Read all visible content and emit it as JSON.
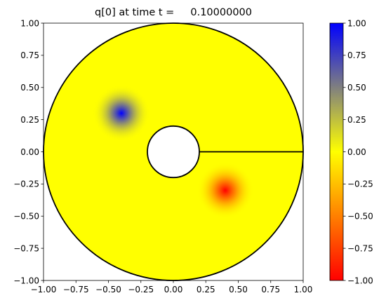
{
  "chart_data": {
    "type": "heatmap",
    "title": "q[0] at time t =     0.10000000",
    "xlabel": "",
    "ylabel": "",
    "xlim": [
      -1.0,
      1.0
    ],
    "ylim": [
      -1.0,
      1.0
    ],
    "x_ticks": [
      -1.0,
      -0.75,
      -0.5,
      -0.25,
      0.0,
      0.25,
      0.5,
      0.75,
      1.0
    ],
    "x_tick_labels": [
      "−1.00",
      "−0.75",
      "−0.50",
      "−0.25",
      "0.00",
      "0.25",
      "0.50",
      "0.75",
      "1.00"
    ],
    "y_ticks": [
      1.0,
      0.75,
      0.5,
      0.25,
      0.0,
      -0.25,
      -0.5,
      -0.75,
      -1.0
    ],
    "y_tick_labels": [
      "1.00",
      "0.75",
      "0.50",
      "0.25",
      "0.00",
      "−0.25",
      "−0.50",
      "−0.75",
      "−1.00"
    ],
    "grid": false,
    "domain": {
      "outer_radius": 1.0,
      "inner_radius": 0.2,
      "cut_line": {
        "x_from": 0.2,
        "x_to": 1.0,
        "y": 0.0
      },
      "fill_value": 0.0
    },
    "blobs": [
      {
        "name": "positive",
        "cx": -0.4,
        "cy": 0.3,
        "value": 1.0,
        "radius": 0.22
      },
      {
        "name": "negative",
        "cx": 0.4,
        "cy": -0.3,
        "value": -1.0,
        "radius": 0.22
      }
    ],
    "colorbar": {
      "vmin": -1.0,
      "vmax": 1.0,
      "colors": [
        "#ff0000",
        "#ffff00",
        "#0000ff"
      ],
      "ticks": [
        1.0,
        0.75,
        0.5,
        0.25,
        0.0,
        -0.25,
        -0.5,
        -0.75,
        -1.0
      ],
      "tick_labels": [
        "1.00",
        "0.75",
        "0.50",
        "0.25",
        "0.00",
        "−0.25",
        "−0.50",
        "−0.75",
        "−1.00"
      ]
    }
  }
}
